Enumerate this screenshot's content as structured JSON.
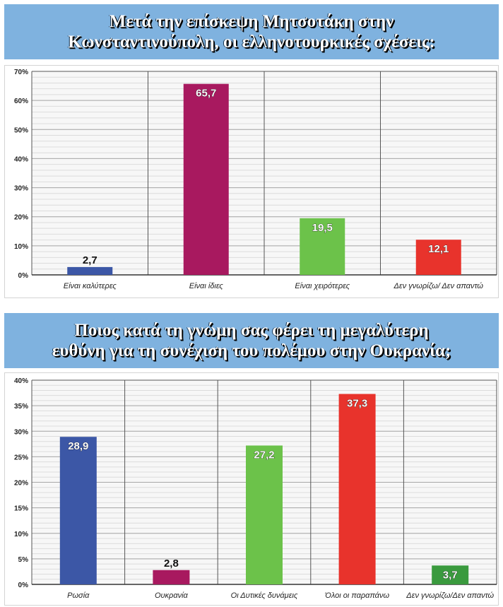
{
  "chart_data": [
    {
      "type": "bar",
      "title_lines": [
        "Μετά την επίσκεψη Μητσοτάκη στην",
        "Κωνσταντινούπολη, οι ελληνοτουρκικές σχέσεις:"
      ],
      "categories": [
        "Είναι καλύτερες",
        "Είναι ίδιες",
        "Είναι χειρότερες",
        "Δεν γνωρίζω/ Δεν απαντώ"
      ],
      "values": [
        2.7,
        65.7,
        19.5,
        12.1
      ],
      "value_labels": [
        "2,7",
        "65,7",
        "19,5",
        "12,1"
      ],
      "colors": [
        "#3c57a6",
        "#a8195f",
        "#6cc24a",
        "#e8332c"
      ],
      "label_positions": [
        "above",
        "inside",
        "inside",
        "inside"
      ],
      "ylim": [
        0,
        70
      ],
      "yticks": [
        0,
        10,
        20,
        30,
        40,
        50,
        60,
        70
      ],
      "ytick_labels": [
        "0%",
        "10%",
        "20%",
        "30%",
        "40%",
        "50%",
        "60%",
        "70%"
      ],
      "grid": true,
      "xlabel": "",
      "ylabel": ""
    },
    {
      "type": "bar",
      "title_lines": [
        "Ποιος κατά τη γνώμη σας φέρει τη μεγαλύτερη",
        "ευθύνη για τη συνέχιση του πολέμου στην Ουκρανία;"
      ],
      "categories": [
        "Ρωσία",
        "Ουκρανία",
        "Οι Δυτικές δυνάμεις",
        "Όλοι οι παραπάνω",
        "Δεν γνωρίζω/Δεν απαντώ"
      ],
      "values": [
        28.9,
        2.8,
        27.2,
        37.3,
        3.7
      ],
      "value_labels": [
        "28,9",
        "2,8",
        "27,2",
        "37,3",
        "3,7"
      ],
      "colors": [
        "#3c57a6",
        "#a8195f",
        "#6cc24a",
        "#e8332c",
        "#3a9a3e"
      ],
      "label_positions": [
        "inside",
        "above",
        "inside",
        "inside",
        "inside"
      ],
      "ylim": [
        0,
        40
      ],
      "yticks": [
        0,
        5,
        10,
        15,
        20,
        25,
        30,
        35,
        40
      ],
      "ytick_labels": [
        "0%",
        "5%",
        "10%",
        "15%",
        "20%",
        "25%",
        "30%",
        "35%",
        "40%"
      ],
      "grid": true,
      "xlabel": "",
      "ylabel": ""
    }
  ]
}
